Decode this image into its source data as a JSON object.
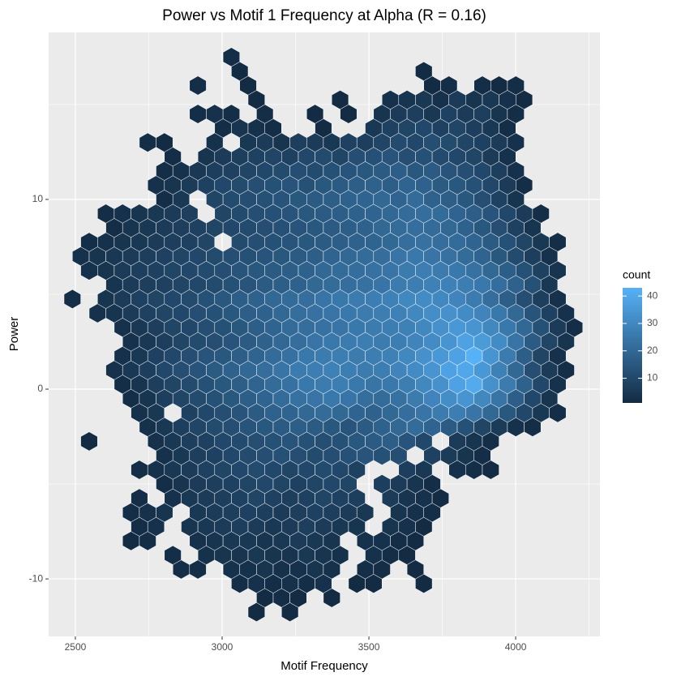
{
  "chart_data": {
    "type": "hexbin",
    "title": "Power vs Motif 1 Frequency at Alpha (R = 0.16)",
    "x_label": "Motif Frequency",
    "y_label": "Power",
    "legend_title": "count",
    "xlim": [
      2409,
      4287
    ],
    "ylim": [
      -13.03,
      18.8
    ],
    "xticks": [
      2500,
      3000,
      3500,
      4000
    ],
    "yticks": [
      -10,
      0,
      10
    ],
    "legend_ticks": [
      10,
      20,
      30,
      40
    ],
    "grid": true,
    "background": "#EBEBEB",
    "low_color": "#132B43",
    "high_color": "#56B1F7",
    "binwidth": [
      57,
      0.75
    ],
    "rows": [
      {
        "y": -11.75,
        "x0": 3117,
        "counts": [
          1,
          null,
          1
        ]
      },
      {
        "y": -11,
        "x0": 3145.5,
        "counts": [
          1,
          2,
          1,
          null,
          1
        ]
      },
      {
        "y": -10.25,
        "x0": 3060,
        "counts": [
          2,
          3,
          2,
          3,
          2,
          3,
          null,
          1,
          1,
          null,
          null,
          1
        ]
      },
      {
        "y": -9.5,
        "x0": 2860.5,
        "counts": [
          2,
          2,
          null,
          3,
          3,
          4,
          3,
          3,
          4,
          3,
          null,
          2,
          2,
          null,
          1
        ]
      },
      {
        "y": -8.75,
        "x0": 2832,
        "counts": [
          2,
          null,
          3,
          4,
          4,
          5,
          4,
          4,
          5,
          4,
          3,
          null,
          3,
          2,
          1
        ]
      },
      {
        "y": -8,
        "x0": 2689.5,
        "counts": [
          1,
          2,
          null,
          null,
          3,
          4,
          5,
          5,
          4,
          5,
          6,
          5,
          4,
          null,
          3,
          3,
          2,
          1
        ]
      },
      {
        "y": -7.25,
        "x0": 2718,
        "counts": [
          2,
          3,
          null,
          4,
          5,
          6,
          7,
          6,
          5,
          6,
          7,
          6,
          5,
          4,
          null,
          4,
          3,
          1
        ]
      },
      {
        "y": -6.5,
        "x0": 2689.5,
        "counts": [
          2,
          3,
          4,
          null,
          5,
          6,
          7,
          8,
          7,
          6,
          7,
          8,
          7,
          6,
          5,
          null,
          4,
          3,
          2
        ]
      },
      {
        "y": -5.75,
        "x0": 2718,
        "counts": [
          2,
          null,
          3,
          5,
          6,
          7,
          8,
          9,
          8,
          7,
          8,
          9,
          8,
          7,
          null,
          6,
          4,
          3,
          1
        ]
      },
      {
        "y": -5,
        "x0": 2803.5,
        "counts": [
          2,
          4,
          6,
          7,
          8,
          9,
          10,
          9,
          8,
          9,
          10,
          9,
          null,
          7,
          6,
          4,
          2
        ]
      },
      {
        "y": -4.25,
        "x0": 2718,
        "counts": [
          2,
          3,
          5,
          6,
          8,
          9,
          10,
          11,
          10,
          9,
          10,
          11,
          10,
          8,
          null,
          null,
          7,
          5,
          null,
          3,
          2,
          1
        ]
      },
      {
        "y": -3.5,
        "x0": 2803.5,
        "counts": [
          3,
          5,
          7,
          8,
          10,
          11,
          12,
          13,
          12,
          11,
          12,
          13,
          14,
          13,
          12,
          null,
          8,
          6,
          4,
          2
        ]
      },
      {
        "y": -2.75,
        "x0": 2547,
        "counts": [
          1,
          null,
          null,
          null,
          3,
          5,
          7,
          8,
          10,
          11,
          12,
          13,
          14,
          13,
          12,
          13,
          15,
          16,
          17,
          14,
          10,
          null,
          6,
          4,
          2
        ]
      },
      {
        "y": -2,
        "x0": 2746.5,
        "counts": [
          3,
          5,
          7,
          9,
          11,
          12,
          14,
          15,
          16,
          17,
          16,
          15,
          14,
          16,
          18,
          20,
          21,
          19,
          16,
          13,
          9,
          6,
          3,
          2
        ]
      },
      {
        "y": -1.25,
        "x0": 2718,
        "counts": [
          3,
          5,
          null,
          8,
          10,
          12,
          14,
          16,
          18,
          19,
          20,
          21,
          20,
          19,
          18,
          20,
          22,
          24,
          26,
          27,
          24,
          20,
          15,
          10,
          5,
          2
        ]
      },
      {
        "y": -0.5,
        "x0": 2689.5,
        "counts": [
          2,
          4,
          7,
          9,
          11,
          13,
          15,
          17,
          19,
          21,
          23,
          24,
          25,
          24,
          22,
          21,
          23,
          26,
          29,
          32,
          34,
          30,
          24,
          17,
          10,
          4
        ]
      },
      {
        "y": 0.25,
        "x0": 2661,
        "counts": [
          2,
          4,
          7,
          9,
          11,
          13,
          15,
          17,
          19,
          21,
          23,
          25,
          26,
          27,
          25,
          24,
          25,
          27,
          30,
          33,
          38,
          41,
          33,
          26,
          18,
          10,
          3
        ]
      },
      {
        "y": 1,
        "x0": 2632.5,
        "counts": [
          3,
          5,
          7,
          10,
          12,
          14,
          16,
          18,
          20,
          22,
          24,
          26,
          27,
          28,
          27,
          26,
          27,
          29,
          31,
          34,
          38,
          40,
          35,
          28,
          20,
          12,
          6,
          2
        ]
      },
      {
        "y": 1.75,
        "x0": 2661,
        "counts": [
          3,
          5,
          8,
          10,
          12,
          14,
          15,
          17,
          19,
          21,
          23,
          25,
          26,
          27,
          26,
          27,
          28,
          30,
          33,
          35,
          38,
          43,
          34,
          26,
          17,
          9,
          3
        ]
      },
      {
        "y": 2.5,
        "x0": 2689.5,
        "counts": [
          3,
          5,
          7,
          9,
          11,
          12,
          14,
          16,
          18,
          20,
          22,
          24,
          25,
          26,
          27,
          26,
          27,
          29,
          31,
          34,
          38,
          36,
          31,
          24,
          16,
          9,
          4
        ]
      },
      {
        "y": 3.25,
        "x0": 2661,
        "counts": [
          3,
          5,
          7,
          9,
          10,
          12,
          13,
          15,
          17,
          19,
          21,
          22,
          23,
          24,
          25,
          26,
          27,
          28,
          30,
          33,
          35,
          34,
          30,
          25,
          20,
          13,
          6,
          2
        ]
      },
      {
        "y": 4,
        "x0": 2575.5,
        "counts": [
          3,
          4,
          6,
          8,
          9,
          10,
          12,
          13,
          15,
          17,
          18,
          20,
          22,
          23,
          24,
          25,
          26,
          27,
          28,
          30,
          32,
          33,
          31,
          29,
          25,
          20,
          14,
          8,
          3
        ]
      },
      {
        "y": 4.75,
        "x0": 2490,
        "counts": [
          2,
          null,
          4,
          6,
          8,
          9,
          10,
          11,
          13,
          15,
          17,
          18,
          20,
          21,
          22,
          24,
          25,
          26,
          27,
          28,
          30,
          31,
          30,
          29,
          26,
          22,
          17,
          12,
          7,
          3
        ]
      },
      {
        "y": 5.5,
        "x0": 2632.5,
        "counts": [
          4,
          6,
          7,
          8,
          9,
          10,
          11,
          13,
          14,
          16,
          17,
          18,
          20,
          21,
          22,
          23,
          24,
          26,
          27,
          28,
          28,
          27,
          25,
          22,
          18,
          13,
          5
        ]
      },
      {
        "y": 6.25,
        "x0": 2547,
        "counts": [
          3,
          4,
          6,
          7,
          8,
          9,
          10,
          11,
          12,
          14,
          15,
          16,
          17,
          18,
          20,
          21,
          22,
          23,
          24,
          26,
          27,
          26,
          25,
          23,
          20,
          17,
          13,
          8,
          4
        ]
      },
      {
        "y": 7,
        "x0": 2518.5,
        "counts": [
          3,
          4,
          5,
          6,
          7,
          8,
          9,
          10,
          11,
          12,
          13,
          14,
          15,
          16,
          17,
          19,
          20,
          21,
          22,
          24,
          25,
          24,
          23,
          21,
          19,
          15,
          11,
          7,
          3
        ]
      },
      {
        "y": 7.75,
        "x0": 2547,
        "counts": [
          2,
          3,
          4,
          5,
          6,
          7,
          8,
          9,
          null,
          11,
          12,
          13,
          14,
          15,
          16,
          17,
          18,
          19,
          20,
          22,
          23,
          22,
          21,
          19,
          16,
          13,
          9,
          5,
          2
        ]
      },
      {
        "y": 8.5,
        "x0": 2632.5,
        "counts": [
          2,
          4,
          5,
          6,
          7,
          8,
          9,
          10,
          11,
          12,
          13,
          14,
          15,
          16,
          17,
          18,
          20,
          21,
          22,
          21,
          20,
          18,
          15,
          12,
          8,
          4
        ]
      },
      {
        "y": 9.25,
        "x0": 2604,
        "counts": [
          2,
          3,
          4,
          5,
          6,
          7,
          null,
          9,
          11,
          12,
          13,
          14,
          15,
          16,
          17,
          18,
          19,
          20,
          21,
          22,
          21,
          19,
          17,
          14,
          10,
          6,
          2
        ]
      },
      {
        "y": 10,
        "x0": 2803.5,
        "counts": [
          2,
          5,
          null,
          9,
          11,
          12,
          13,
          14,
          15,
          16,
          17,
          18,
          19,
          20,
          19,
          21,
          18,
          17,
          15,
          12,
          8,
          4
        ]
      },
      {
        "y": 10.75,
        "x0": 2775,
        "counts": [
          3,
          4,
          6,
          8,
          10,
          11,
          12,
          13,
          14,
          13,
          15,
          16,
          17,
          18,
          17,
          19,
          18,
          16,
          15,
          13,
          10,
          6,
          2
        ]
      },
      {
        "y": 11.5,
        "x0": 2803.5,
        "counts": [
          2,
          3,
          5,
          7,
          8,
          9,
          10,
          11,
          12,
          11,
          13,
          14,
          15,
          16,
          17,
          15,
          16,
          14,
          12,
          10,
          7,
          3
        ]
      },
      {
        "y": 12.25,
        "x0": 2832,
        "counts": [
          2,
          null,
          4,
          6,
          7,
          8,
          9,
          8,
          10,
          11,
          9,
          12,
          13,
          14,
          12,
          13,
          11,
          10,
          9,
          6,
          3
        ]
      },
      {
        "y": 13,
        "x0": 2746.5,
        "counts": [
          2,
          1,
          null,
          null,
          3,
          null,
          5,
          6,
          4,
          7,
          6,
          5,
          8,
          7,
          9,
          11,
          10,
          12,
          11,
          9,
          8,
          6,
          3
        ]
      },
      {
        "y": 13.75,
        "x0": 3003,
        "counts": [
          2,
          4,
          3,
          2,
          null,
          null,
          1,
          null,
          null,
          5,
          8,
          9,
          10,
          8,
          9,
          7,
          5,
          2
        ]
      },
      {
        "y": 14.5,
        "x0": 2917.5,
        "counts": [
          2,
          3,
          2,
          null,
          2,
          null,
          null,
          1,
          null,
          1,
          null,
          4,
          6,
          7,
          5,
          8,
          6,
          7,
          4,
          2
        ]
      },
      {
        "y": 15.25,
        "x0": 3117,
        "counts": [
          1,
          null,
          null,
          null,
          null,
          1,
          null,
          null,
          3,
          4,
          5,
          3,
          6,
          4,
          5,
          3,
          1
        ]
      },
      {
        "y": 16,
        "x0": 2917.5,
        "counts": [
          2,
          null,
          null,
          1,
          null,
          null,
          null,
          null,
          null,
          null,
          null,
          null,
          null,
          null,
          1,
          2,
          null,
          2,
          1,
          2
        ]
      },
      {
        "y": 16.75,
        "x0": 3060,
        "counts": [
          1,
          null,
          null,
          null,
          null,
          null,
          null,
          null,
          null,
          null,
          null,
          1
        ]
      },
      {
        "y": 17.5,
        "x0": 3031.5,
        "counts": [
          2
        ]
      }
    ]
  }
}
